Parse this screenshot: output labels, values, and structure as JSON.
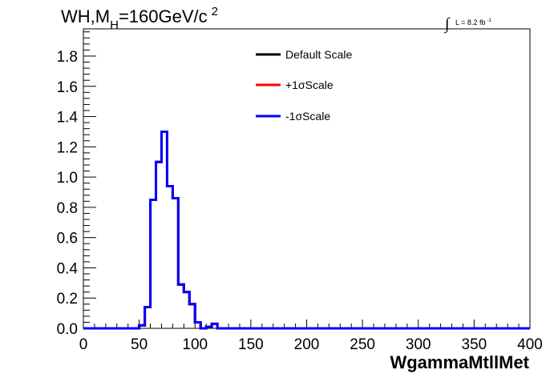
{
  "chart_data": {
    "type": "line",
    "title_main": "WH,M",
    "title_sub": "H",
    "title_rest": "=160GeV/c",
    "title_sup": "2",
    "lumi_integral": "∫",
    "lumi_text": "L = 8.2 fb",
    "lumi_sup": "-1",
    "xlabel": "WgammaMtllMet",
    "ylabel": "",
    "xlim": [
      0,
      400
    ],
    "ylim": [
      0,
      1.98
    ],
    "x_ticks": [
      0,
      50,
      100,
      150,
      200,
      250,
      300,
      350,
      400
    ],
    "x_tick_labels": [
      "0",
      "50",
      "100",
      "150",
      "200",
      "250",
      "300",
      "350",
      "400"
    ],
    "y_ticks": [
      0,
      0.2,
      0.4,
      0.6,
      0.8,
      1.0,
      1.2,
      1.4,
      1.6,
      1.8
    ],
    "y_tick_labels": [
      "0.0",
      "0.2",
      "0.4",
      "0.6",
      "0.8",
      "1.0",
      "1.2",
      "1.4",
      "1.6",
      "1.8"
    ],
    "legend_position": "top-center",
    "bin_edges": [
      0,
      5,
      10,
      15,
      20,
      25,
      30,
      35,
      40,
      45,
      50,
      55,
      60,
      65,
      70,
      75,
      80,
      85,
      90,
      95,
      100,
      105,
      110,
      115,
      120,
      125,
      130,
      135,
      140,
      145,
      150,
      155,
      160,
      165,
      170,
      175,
      180,
      185,
      190,
      195,
      200,
      205,
      210,
      215,
      220,
      225,
      230,
      235,
      240,
      245,
      250,
      255,
      260,
      265,
      270,
      275,
      280,
      285,
      290,
      295,
      300,
      305,
      310,
      315,
      320,
      325,
      330,
      335,
      340,
      345,
      350,
      355,
      360,
      365,
      370,
      375,
      380,
      385,
      390,
      395,
      400
    ],
    "series": [
      {
        "name": "Default Scale",
        "color": "#000000",
        "values": [
          0,
          0,
          0,
          0,
          0,
          0,
          0,
          0,
          0,
          0,
          0.02,
          0.14,
          0.85,
          1.1,
          1.3,
          0.94,
          0.86,
          0.29,
          0.24,
          0.16,
          0.04,
          0,
          0.01,
          0.03,
          0,
          0,
          0,
          0,
          0,
          0,
          0,
          0,
          0,
          0,
          0,
          0,
          0,
          0,
          0,
          0,
          0,
          0,
          0,
          0,
          0,
          0,
          0,
          0,
          0,
          0,
          0,
          0,
          0,
          0,
          0,
          0,
          0,
          0,
          0,
          0,
          0,
          0,
          0,
          0,
          0,
          0,
          0,
          0,
          0,
          0,
          0,
          0,
          0,
          0,
          0,
          0,
          0,
          0,
          0,
          0
        ]
      },
      {
        "name": "+1σScale",
        "color": "#ff0000",
        "values": [
          0,
          0,
          0,
          0,
          0,
          0,
          0,
          0,
          0,
          0,
          0.02,
          0.14,
          0.85,
          1.1,
          1.3,
          0.94,
          0.86,
          0.29,
          0.24,
          0.16,
          0.04,
          0,
          0.01,
          0.03,
          0,
          0,
          0,
          0,
          0,
          0,
          0,
          0,
          0,
          0,
          0,
          0,
          0,
          0,
          0,
          0,
          0,
          0,
          0,
          0,
          0,
          0,
          0,
          0,
          0,
          0,
          0,
          0,
          0,
          0,
          0,
          0,
          0,
          0,
          0,
          0,
          0,
          0,
          0,
          0,
          0,
          0,
          0,
          0,
          0,
          0,
          0,
          0,
          0,
          0,
          0,
          0,
          0,
          0,
          0,
          0
        ]
      },
      {
        "name": "-1σScale",
        "color": "#0000ff",
        "values": [
          0,
          0,
          0,
          0,
          0,
          0,
          0,
          0,
          0,
          0,
          0.02,
          0.14,
          0.85,
          1.1,
          1.3,
          0.94,
          0.86,
          0.29,
          0.24,
          0.16,
          0.04,
          0,
          0.01,
          0.03,
          0,
          0,
          0,
          0,
          0,
          0,
          0,
          0,
          0,
          0,
          0,
          0,
          0,
          0,
          0,
          0,
          0,
          0,
          0,
          0,
          0,
          0,
          0,
          0,
          0,
          0,
          0,
          0,
          0,
          0,
          0,
          0,
          0,
          0,
          0,
          0,
          0,
          0,
          0,
          0,
          0,
          0,
          0,
          0,
          0,
          0,
          0,
          0,
          0,
          0,
          0,
          0,
          0,
          0,
          0,
          0
        ]
      }
    ]
  }
}
